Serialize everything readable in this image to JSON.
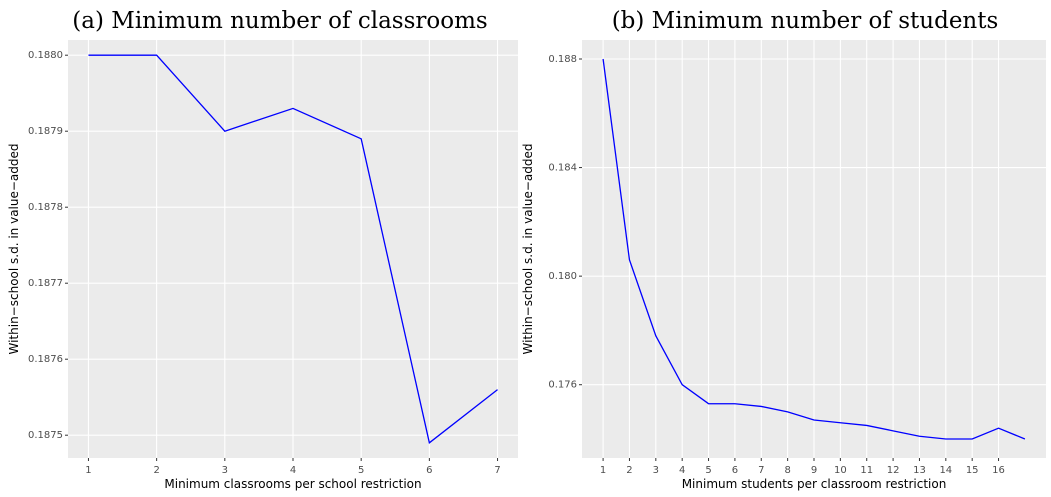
{
  "chart_data": [
    {
      "type": "line",
      "title": "(a) Minimum number of classrooms",
      "x_label": "Minimum classrooms per school restriction",
      "y_label": "Within−school s.d. in value−added",
      "x": [
        1,
        2,
        3,
        4,
        5,
        6,
        7
      ],
      "series": [
        {
          "color": "#0000ff",
          "values": [
            0.188,
            0.188,
            0.1879,
            0.18793,
            0.18789,
            0.18749,
            0.18756
          ]
        }
      ],
      "xlim": [
        0.7,
        7.3
      ],
      "xticks": [
        1,
        2,
        3,
        4,
        5,
        6,
        7
      ],
      "ylim": [
        0.18747,
        0.18802
      ],
      "yticks": [
        {
          "value": 0.1875,
          "label": "0.1875"
        },
        {
          "value": 0.1876,
          "label": "0.1876"
        },
        {
          "value": 0.1877,
          "label": "0.1877"
        },
        {
          "value": 0.1878,
          "label": "0.1878"
        },
        {
          "value": 0.1879,
          "label": "0.1879"
        },
        {
          "value": 0.188,
          "label": "0.1880"
        }
      ],
      "grid": true
    },
    {
      "type": "line",
      "title": "(b) Minimum number of students",
      "x_label": "Minimum students per classroom restriction",
      "y_label": "Within−school s.d. in value−added",
      "x": [
        1,
        2,
        3,
        4,
        5,
        6,
        7,
        8,
        9,
        10,
        11,
        12,
        13,
        14,
        15,
        16,
        17
      ],
      "series": [
        {
          "color": "#0000ff",
          "values": [
            0.188,
            0.1806,
            0.1778,
            0.176,
            0.1753,
            0.1753,
            0.1752,
            0.175,
            0.1747,
            0.1746,
            0.1745,
            0.1743,
            0.1741,
            0.174,
            0.174,
            0.1744,
            0.174
          ]
        }
      ],
      "xlim": [
        0.2,
        17.8
      ],
      "xticks": [
        1,
        2,
        3,
        4,
        5,
        6,
        7,
        8,
        9,
        10,
        11,
        12,
        13,
        14,
        15,
        16
      ],
      "ylim": [
        0.1733,
        0.1887
      ],
      "yticks": [
        0.176,
        {
          "value": 0.18,
          "label": "0.180"
        },
        0.184,
        0.188
      ],
      "grid": true
    }
  ]
}
